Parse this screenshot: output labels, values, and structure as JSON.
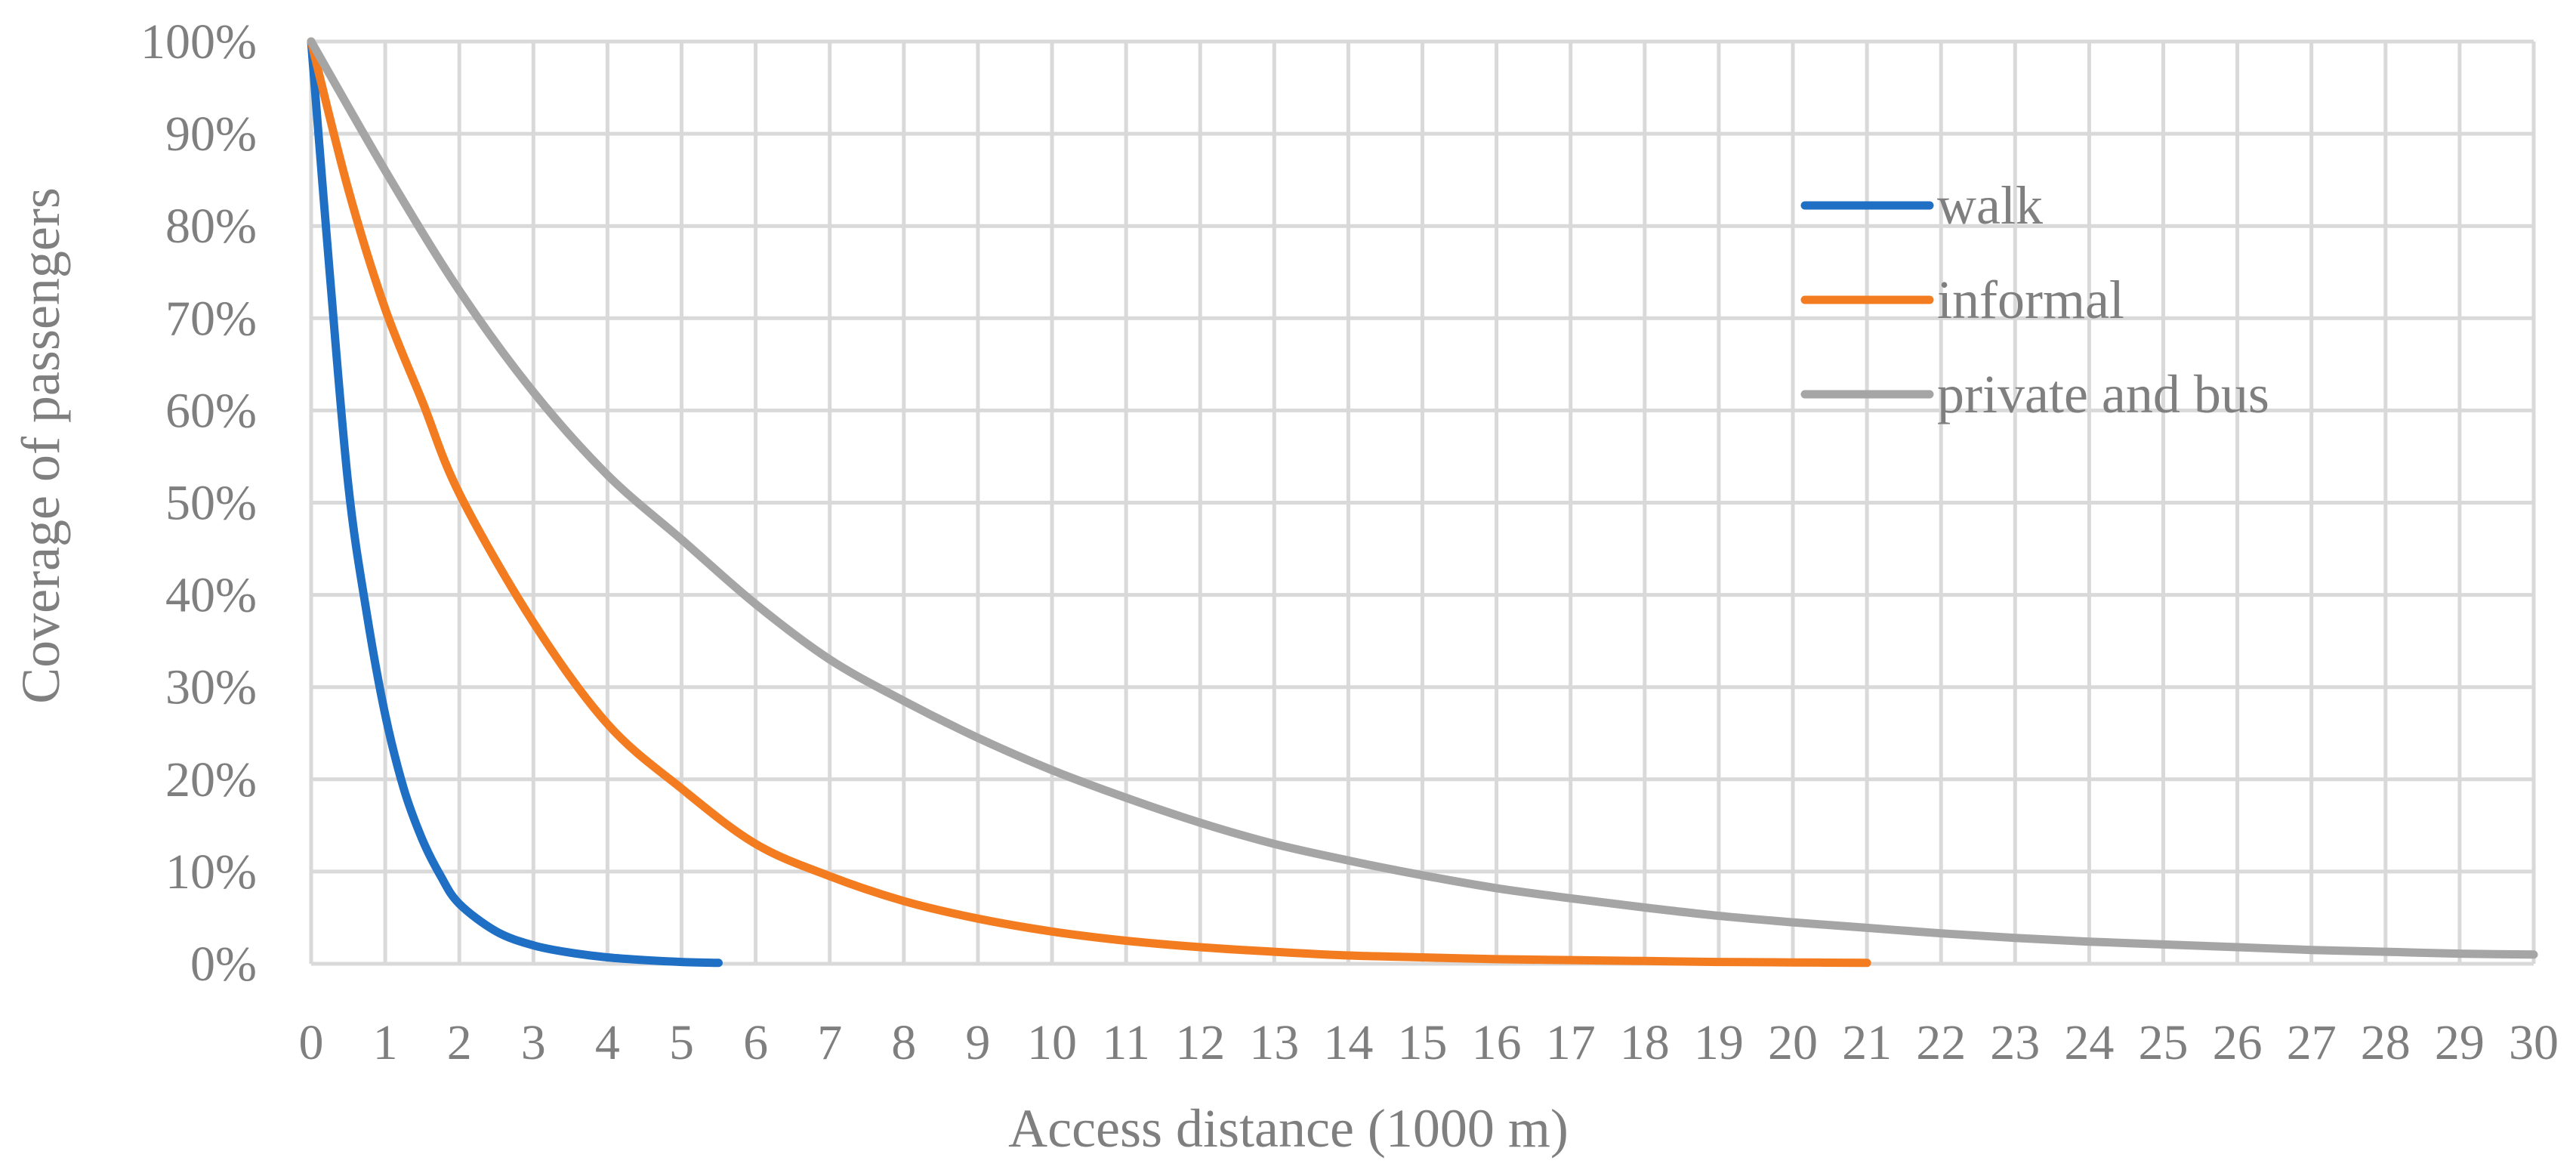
{
  "chart_data": {
    "type": "line",
    "xlabel": "Access distance (1000 m)",
    "ylabel": "Coverage  of passengers",
    "xlim": [
      0,
      30
    ],
    "ylim": [
      0,
      100
    ],
    "x_ticks": [
      "0",
      "1",
      "2",
      "3",
      "4",
      "5",
      "6",
      "7",
      "8",
      "9",
      "10",
      "11",
      "12",
      "13",
      "14",
      "15",
      "16",
      "17",
      "18",
      "19",
      "20",
      "21",
      "22",
      "23",
      "24",
      "25",
      "26",
      "27",
      "28",
      "29",
      "30"
    ],
    "y_ticks": [
      "0%",
      "10%",
      "20%",
      "30%",
      "40%",
      "50%",
      "60%",
      "70%",
      "80%",
      "90%",
      "100%"
    ],
    "grid": true,
    "legend_position": "top-right",
    "series": [
      {
        "name": "walk",
        "color": "#1f6fc4",
        "x": [
          0,
          0.25,
          0.5,
          0.75,
          1,
          1.25,
          1.5,
          1.75,
          2,
          2.5,
          3,
          3.5,
          4,
          4.5,
          5,
          5.5
        ],
        "y": [
          100,
          75,
          52,
          38,
          27,
          19,
          13.5,
          9.5,
          6.5,
          3.5,
          2,
          1.2,
          0.7,
          0.4,
          0.2,
          0.1
        ]
      },
      {
        "name": "informal",
        "color": "#f47c20",
        "x": [
          0,
          0.5,
          1,
          1.5,
          2,
          3,
          4,
          5,
          6,
          7,
          8,
          9,
          10,
          11,
          12,
          13,
          14,
          15,
          16,
          17,
          18,
          19,
          20,
          21
        ],
        "y": [
          100,
          84,
          71,
          61,
          51,
          37,
          26,
          19,
          13,
          9.5,
          6.8,
          4.9,
          3.5,
          2.5,
          1.8,
          1.3,
          0.9,
          0.7,
          0.5,
          0.4,
          0.3,
          0.2,
          0.15,
          0.1
        ]
      },
      {
        "name": "private and bus",
        "color": "#a5a5a5",
        "x": [
          0,
          1,
          2,
          3,
          4,
          5,
          6,
          7,
          8,
          9,
          10,
          11,
          12,
          13,
          14,
          15,
          16,
          17,
          18,
          19,
          20,
          21,
          22,
          23,
          24,
          25,
          26,
          27,
          28,
          29,
          30
        ],
        "y": [
          100,
          86,
          73,
          62,
          53,
          46,
          39,
          33,
          28.5,
          24.5,
          21,
          18,
          15.3,
          13,
          11.2,
          9.6,
          8.2,
          7.1,
          6.1,
          5.2,
          4.5,
          3.9,
          3.3,
          2.8,
          2.4,
          2.1,
          1.8,
          1.5,
          1.3,
          1.1,
          1
        ]
      }
    ]
  }
}
